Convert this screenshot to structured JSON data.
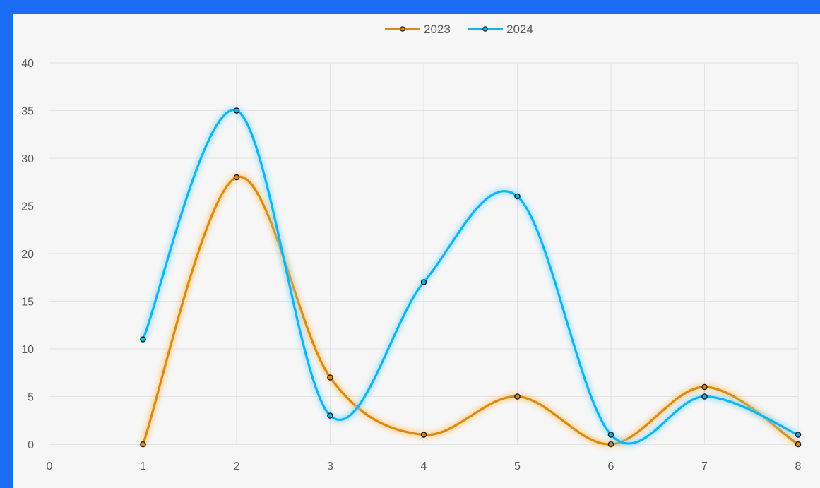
{
  "chart_data": {
    "type": "line",
    "smooth": true,
    "x": [
      1,
      2,
      3,
      4,
      5,
      6,
      7,
      8
    ],
    "series": [
      {
        "name": "2023",
        "color": "#d98a12",
        "glow": "#ffc060",
        "values": [
          0,
          28,
          7,
          1,
          5,
          0,
          6,
          0
        ]
      },
      {
        "name": "2024",
        "color": "#10b4ef",
        "glow": "#7fd8ff",
        "values": [
          11,
          35,
          3,
          17,
          26,
          1,
          5,
          1
        ]
      }
    ],
    "xlim": [
      0,
      8
    ],
    "ylim": [
      0,
      40
    ],
    "x_ticks": [
      "0",
      "1",
      "2",
      "3",
      "4",
      "5",
      "6",
      "7",
      "8"
    ],
    "y_ticks": [
      "0",
      "5",
      "10",
      "15",
      "20",
      "25",
      "30",
      "35",
      "40"
    ],
    "grid": true,
    "legend": "top-center",
    "title": "",
    "xlabel": "",
    "ylabel": ""
  }
}
